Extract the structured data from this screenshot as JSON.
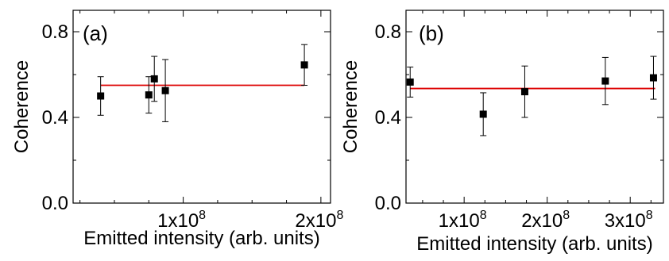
{
  "chart_data": [
    {
      "type": "scatter",
      "panel_label": "(a)",
      "xlabel": "Emitted intensity (arb. units)",
      "ylabel": "Coherence",
      "xlim": [
        20000000,
        207000000
      ],
      "ylim": [
        0.0,
        0.9
      ],
      "x_ticks": [
        {
          "value": 100000000,
          "mantissa": "1x10",
          "exp": "8"
        },
        {
          "value": 200000000,
          "mantissa": "2x10",
          "exp": "8"
        }
      ],
      "y_ticks": [
        {
          "value": 0.0,
          "label": "0.0"
        },
        {
          "value": 0.4,
          "label": "0.4"
        },
        {
          "value": 0.8,
          "label": "0.8"
        }
      ],
      "fit_line": {
        "color": "#dd0000",
        "y": 0.55,
        "x_from": 40000000,
        "x_to": 188000000
      },
      "series": [
        {
          "marker_color": "#000000",
          "points": [
            {
              "x": 40000000,
              "y": 0.5,
              "err": 0.09
            },
            {
              "x": 75000000,
              "y": 0.505,
              "err": 0.085
            },
            {
              "x": 79000000,
              "y": 0.58,
              "err": 0.105
            },
            {
              "x": 87000000,
              "y": 0.525,
              "err": 0.145
            },
            {
              "x": 188000000,
              "y": 0.645,
              "err": 0.095
            }
          ]
        }
      ]
    },
    {
      "type": "scatter",
      "panel_label": "(b)",
      "xlabel": "Emitted intensity (arb. units)",
      "ylabel": "Coherence",
      "xlim": [
        30000000,
        340000000
      ],
      "ylim": [
        0.0,
        0.9
      ],
      "x_ticks": [
        {
          "value": 100000000,
          "mantissa": "1x10",
          "exp": "8"
        },
        {
          "value": 200000000,
          "mantissa": "2x10",
          "exp": "8"
        },
        {
          "value": 300000000,
          "mantissa": "3x10",
          "exp": "8"
        }
      ],
      "y_ticks": [
        {
          "value": 0.0,
          "label": "0.0"
        },
        {
          "value": 0.4,
          "label": "0.4"
        },
        {
          "value": 0.8,
          "label": "0.8"
        }
      ],
      "fit_line": {
        "color": "#dd0000",
        "y": 0.535,
        "x_from": 35000000,
        "x_to": 330000000
      },
      "series": [
        {
          "marker_color": "#000000",
          "points": [
            {
              "x": 35000000,
              "y": 0.565,
              "err": 0.07
            },
            {
              "x": 123000000,
              "y": 0.415,
              "err": 0.1
            },
            {
              "x": 173000000,
              "y": 0.52,
              "err": 0.12
            },
            {
              "x": 270000000,
              "y": 0.57,
              "err": 0.11
            },
            {
              "x": 328000000,
              "y": 0.585,
              "err": 0.1
            }
          ]
        }
      ]
    }
  ]
}
